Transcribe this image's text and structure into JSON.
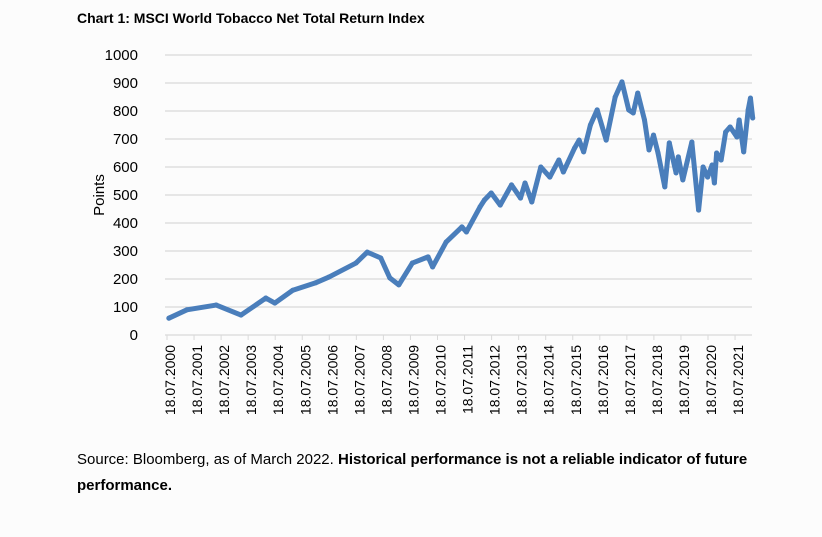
{
  "chart_data": {
    "type": "line",
    "title": "Chart 1: MSCI World Tobacco Net Total Return Index",
    "xlabel": "",
    "ylabel": "Points",
    "ylim": [
      0,
      1000
    ],
    "yticks": [
      0,
      100,
      200,
      300,
      400,
      500,
      600,
      700,
      800,
      900,
      1000
    ],
    "xticks": [
      "18.07.2000",
      "18.07.2001",
      "18.07.2002",
      "18.07.2003",
      "18.07.2004",
      "18.07.2005",
      "18.07.2006",
      "18.07.2007",
      "18.07.2008",
      "18.07.2009",
      "18.07.2010",
      "18.07.2011",
      "18.07.2012",
      "18.07.2013",
      "18.07.2014",
      "18.07.2015",
      "18.07.2016",
      "18.07.2017",
      "18.07.2018",
      "18.07.2019",
      "18.07.2020",
      "18.07.2021"
    ],
    "grid": true,
    "legend": "none",
    "line_color": "#4a7ebb",
    "series": [
      {
        "points": [
          [
            "2000-07",
            60
          ],
          [
            "2001-03",
            90
          ],
          [
            "2002-04",
            107
          ],
          [
            "2003-03",
            71
          ],
          [
            "2004-02",
            132
          ],
          [
            "2004-06",
            114
          ],
          [
            "2005-02",
            160
          ],
          [
            "2005-12",
            186
          ],
          [
            "2006-06",
            207
          ],
          [
            "2007-06",
            257
          ],
          [
            "2007-11",
            296
          ],
          [
            "2008-05",
            275
          ],
          [
            "2008-09",
            204
          ],
          [
            "2009-01",
            179
          ],
          [
            "2009-07",
            257
          ],
          [
            "2010-02",
            279
          ],
          [
            "2010-04",
            243
          ],
          [
            "2010-10",
            332
          ],
          [
            "2011-05",
            386
          ],
          [
            "2011-07",
            368
          ],
          [
            "2012-01",
            457
          ],
          [
            "2012-03",
            482
          ],
          [
            "2012-06",
            507
          ],
          [
            "2012-10",
            464
          ],
          [
            "2013-03",
            536
          ],
          [
            "2013-07",
            489
          ],
          [
            "2013-09",
            543
          ],
          [
            "2013-12",
            475
          ],
          [
            "2014-04",
            600
          ],
          [
            "2014-08",
            564
          ],
          [
            "2014-12",
            625
          ],
          [
            "2015-02",
            582
          ],
          [
            "2015-07",
            668
          ],
          [
            "2015-09",
            696
          ],
          [
            "2015-11",
            654
          ],
          [
            "2016-02",
            750
          ],
          [
            "2016-05",
            804
          ],
          [
            "2016-09",
            696
          ],
          [
            "2017-01",
            850
          ],
          [
            "2017-04",
            904
          ],
          [
            "2017-07",
            804
          ],
          [
            "2017-09",
            793
          ],
          [
            "2017-11",
            864
          ],
          [
            "2018-02",
            768
          ],
          [
            "2018-04",
            661
          ],
          [
            "2018-06",
            714
          ],
          [
            "2018-08",
            650
          ],
          [
            "2018-11",
            529
          ],
          [
            "2019-01",
            686
          ],
          [
            "2019-04",
            579
          ],
          [
            "2019-05",
            636
          ],
          [
            "2019-07",
            554
          ],
          [
            "2019-11",
            689
          ],
          [
            "2020-02",
            446
          ],
          [
            "2020-04",
            600
          ],
          [
            "2020-06",
            564
          ],
          [
            "2020-08",
            607
          ],
          [
            "2020-09",
            543
          ],
          [
            "2020-10",
            650
          ],
          [
            "2020-12",
            625
          ],
          [
            "2021-02",
            725
          ],
          [
            "2021-04",
            743
          ],
          [
            "2021-07",
            707
          ],
          [
            "2021-08",
            768
          ],
          [
            "2021-10",
            654
          ],
          [
            "2021-12",
            804
          ],
          [
            "2022-01",
            846
          ],
          [
            "2022-02",
            775
          ]
        ]
      }
    ]
  },
  "source": {
    "plain": "Source: Bloomberg, as of March 2022. ",
    "bold": "Historical performance is not a reliable indicator of future performance."
  }
}
